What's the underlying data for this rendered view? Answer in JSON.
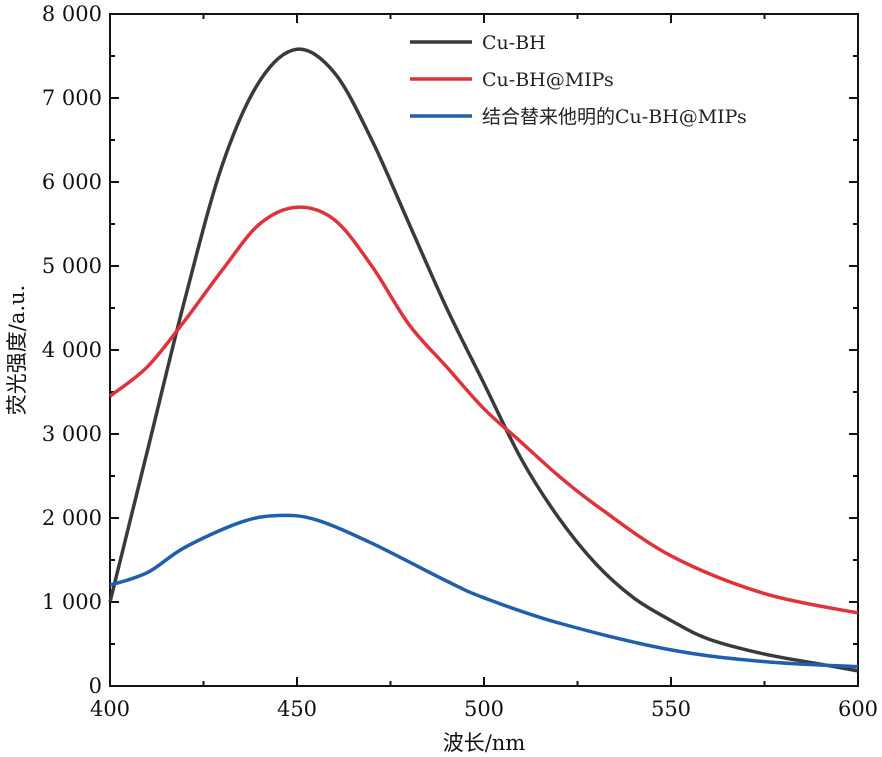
{
  "chart_data": {
    "type": "line",
    "title": "",
    "xlabel": "波长/nm",
    "ylabel": "荧光强度/a.u.",
    "xlim": [
      400,
      600
    ],
    "ylim": [
      0,
      8000
    ],
    "xticks": [
      400,
      450,
      500,
      550,
      600
    ],
    "xtick_labels": [
      "400",
      "450",
      "500",
      "550",
      "600"
    ],
    "yticks": [
      0,
      1000,
      2000,
      3000,
      4000,
      5000,
      6000,
      7000,
      8000
    ],
    "ytick_labels": [
      "0",
      "1 000",
      "2 000",
      "3 000",
      "4 000",
      "5 000",
      "6 000",
      "7 000",
      "8 000"
    ],
    "grid": false,
    "legend_position": "top-right",
    "series": [
      {
        "name": "Cu-BH",
        "color": "#3a3a3c",
        "x": [
          400,
          410,
          420,
          430,
          440,
          450,
          460,
          470,
          480,
          490,
          500,
          510,
          520,
          530,
          540,
          550,
          560,
          575,
          590,
          600
        ],
        "y": [
          1000,
          2800,
          4600,
          6200,
          7200,
          7580,
          7300,
          6500,
          5500,
          4500,
          3600,
          2700,
          2000,
          1450,
          1050,
          780,
          560,
          380,
          260,
          180
        ]
      },
      {
        "name": "Cu-BH@MIPs",
        "color": "#e0323a",
        "x": [
          400,
          410,
          420,
          430,
          440,
          450,
          460,
          470,
          480,
          490,
          500,
          510,
          520,
          530,
          550,
          575,
          600
        ],
        "y": [
          3450,
          3800,
          4350,
          4950,
          5500,
          5700,
          5550,
          5000,
          4300,
          3800,
          3300,
          2900,
          2500,
          2150,
          1550,
          1100,
          870
        ]
      },
      {
        "name": "结合替来他明的Cu-BH@MIPs",
        "color": "#1f5fad",
        "x": [
          400,
          410,
          420,
          435,
          445,
          455,
          470,
          490,
          500,
          520,
          550,
          575,
          600
        ],
        "y": [
          1200,
          1350,
          1650,
          1950,
          2030,
          1980,
          1700,
          1250,
          1050,
          750,
          430,
          290,
          230
        ]
      }
    ]
  }
}
